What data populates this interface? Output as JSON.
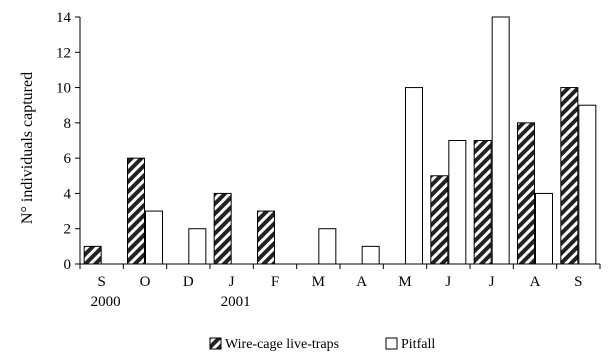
{
  "chart_data": {
    "type": "bar",
    "title": "",
    "xlabel": "",
    "ylabel": "N° individuals captured",
    "ylim": [
      0,
      14
    ],
    "yticks": [
      "0",
      "2",
      "4",
      "6",
      "8",
      "10",
      "12",
      "14"
    ],
    "categories": [
      "S",
      "O",
      "D",
      "J",
      "F",
      "M",
      "A",
      "M",
      "J",
      "J",
      "A",
      "S"
    ],
    "year_labels": [
      {
        "category_index": 0,
        "text": "2000"
      },
      {
        "category_index": 3,
        "text": "2001"
      }
    ],
    "grid": false,
    "legend_position": "bottom-center",
    "series": [
      {
        "name": "Wire-cage live-traps",
        "values": [
          1,
          6,
          0,
          4,
          3,
          0,
          0,
          0,
          5,
          7,
          8,
          10
        ],
        "fill": "diagonal-hatch",
        "color": "#222222"
      },
      {
        "name": "Pitfall",
        "values": [
          0,
          3,
          2,
          0,
          0,
          2,
          1,
          10,
          7,
          14,
          4,
          9
        ],
        "fill": "white",
        "color": "#000000"
      }
    ]
  }
}
